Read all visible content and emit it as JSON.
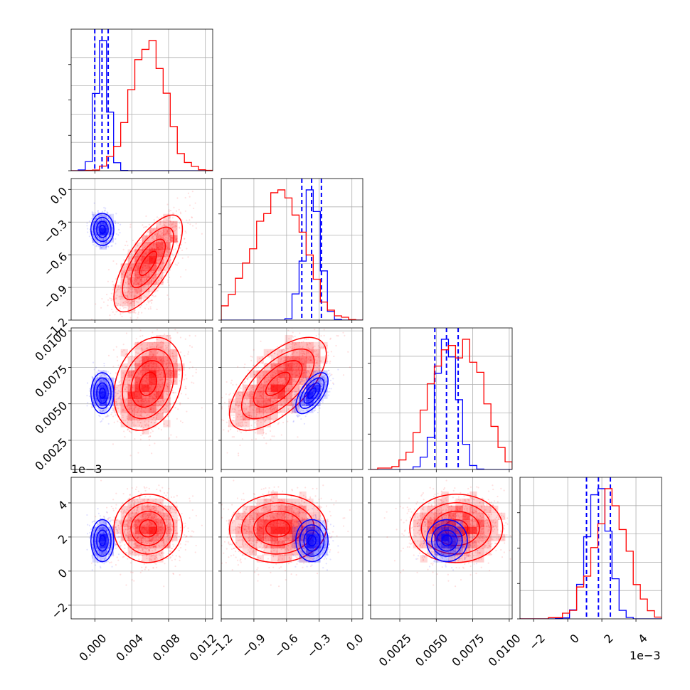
{
  "chart_data": {
    "type": "corner",
    "parameters": [
      {
        "id": "p0",
        "range": [
          -0.0026,
          0.0128
        ],
        "ticks": [
          0.0,
          0.004,
          0.008,
          0.012
        ],
        "tick_labels": [
          "0.000",
          "0.004",
          "0.008",
          "0.012"
        ]
      },
      {
        "id": "p1",
        "range": [
          -1.2,
          0.1
        ],
        "ticks": [
          -1.2,
          -0.9,
          -0.6,
          -0.3,
          0.0
        ],
        "tick_labels": [
          "−1.2",
          "−0.9",
          "−0.6",
          "−0.3",
          "0.0"
        ]
      },
      {
        "id": "p2",
        "range": [
          0.0005,
          0.0102
        ],
        "ticks": [
          0.0025,
          0.005,
          0.0075,
          0.01
        ],
        "tick_labels": [
          "0.0025",
          "0.0050",
          "0.0075",
          "0.0100"
        ]
      },
      {
        "id": "p3",
        "range": [
          -0.0028,
          0.0055
        ],
        "ticks": [
          -0.002,
          0,
          0.002,
          0.004
        ],
        "tick_labels": [
          "−2",
          "0",
          "2",
          "4"
        ],
        "offset_label": "1e−3"
      }
    ],
    "series": [
      {
        "color": "#0000ff",
        "means": [
          0.0008,
          -0.37,
          0.0057,
          0.0018
        ],
        "stds": [
          0.0006,
          0.075,
          0.0007,
          0.0006
        ],
        "quantiles": [
          [
            -3e-05,
            0.00076,
            0.00143
          ],
          [
            -0.46,
            -0.37,
            -0.28
          ],
          [
            0.0049,
            0.0057,
            0.0065
          ],
          [
            0.0011,
            0.0018,
            0.0025
          ]
        ]
      },
      {
        "color": "#ff0000",
        "means": [
          0.0058,
          -0.66,
          0.0065,
          0.0025
        ],
        "stds": [
          0.0019,
          0.22,
          0.0017,
          0.0012
        ],
        "quantiles": []
      }
    ],
    "grid": true,
    "offset_labels": [
      "1e−3",
      "1e−3"
    ]
  }
}
